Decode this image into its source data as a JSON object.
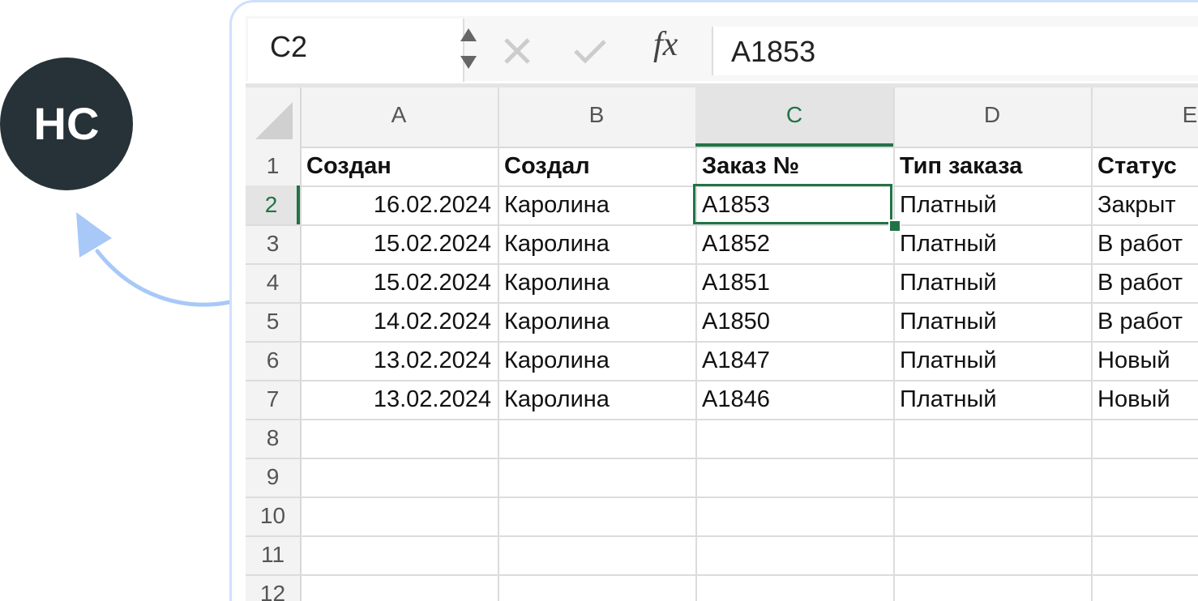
{
  "avatar": {
    "initials": "HC"
  },
  "formula_bar": {
    "name_box": "C2",
    "fx_label": "fx",
    "content": "A1853"
  },
  "sheet": {
    "columns": [
      "A",
      "B",
      "C",
      "D",
      "E"
    ],
    "row_numbers": [
      "1",
      "2",
      "3",
      "4",
      "5",
      "6",
      "7",
      "8",
      "9",
      "10",
      "11",
      "12"
    ],
    "rows": [
      [
        "Создан",
        "Создал",
        "Заказ №",
        "Тип заказа",
        "Статус"
      ],
      [
        "16.02.2024",
        "Каролина",
        "A1853",
        "Платный",
        "Закрыт"
      ],
      [
        "15.02.2024",
        "Каролина",
        "A1852",
        "Платный",
        "В работ"
      ],
      [
        "15.02.2024",
        "Каролина",
        "A1851",
        "Платный",
        "В работ"
      ],
      [
        "14.02.2024",
        "Каролина",
        "A1850",
        "Платный",
        "В работ"
      ],
      [
        "13.02.2024",
        "Каролина",
        "A1847",
        "Платный",
        "Новый"
      ],
      [
        "13.02.2024",
        "Каролина",
        "A1846",
        "Платный",
        "Новый"
      ]
    ]
  }
}
